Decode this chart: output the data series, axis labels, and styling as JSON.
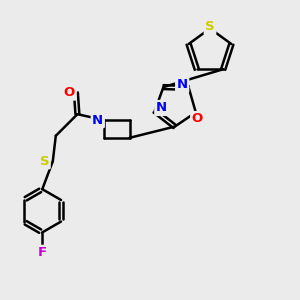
{
  "background_color": "#ebebeb",
  "atom_colors": {
    "C": "#000000",
    "N": "#0000ff",
    "O": "#ff0000",
    "S_thio": "#cccc00",
    "S_thioether": "#cccc00",
    "F": "#cc00cc"
  },
  "bond_color": "#000000",
  "bond_width": 1.8,
  "figsize": [
    3.0,
    3.0
  ],
  "dpi": 100
}
